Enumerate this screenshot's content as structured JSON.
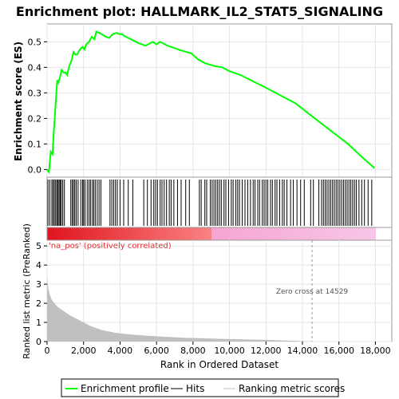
{
  "chart_data": {
    "type": "line",
    "title": "Enrichment plot: HALLMARK_IL2_STAT5_SIGNALING",
    "panels": {
      "enrichment": {
        "ylabel": "Enrichment score (ES)",
        "ylim": [
          -0.03,
          0.57
        ],
        "yticks": [
          "0.0",
          "0.1",
          "0.2",
          "0.3",
          "0.4",
          "0.5"
        ],
        "ytick_values": [
          0.0,
          0.1,
          0.2,
          0.3,
          0.4,
          0.5
        ],
        "grid": true,
        "series": [
          {
            "name": "Enrichment profile",
            "color": "#00ff00",
            "x": [
              0,
              100,
              200,
              300,
              350,
              420,
              500,
              560,
              620,
              700,
              800,
              900,
              1000,
              1100,
              1200,
              1350,
              1450,
              1550,
              1650,
              1800,
              1950,
              2050,
              2150,
              2300,
              2450,
              2600,
              2700,
              2850,
              3000,
              3200,
              3400,
              3600,
              3800,
              3950,
              4100,
              4300,
              4600,
              5000,
              5400,
              5800,
              6000,
              6200,
              6600,
              7000,
              7400,
              7900,
              8300,
              8700,
              9200,
              9600,
              10000,
              10600,
              11300,
              12000,
              12800,
              13600,
              14500,
              15500,
              16500,
              17400,
              17950
            ],
            "y": [
              0.0,
              -0.01,
              0.07,
              0.06,
              0.13,
              0.2,
              0.29,
              0.35,
              0.34,
              0.36,
              0.39,
              0.38,
              0.38,
              0.37,
              0.4,
              0.43,
              0.46,
              0.45,
              0.45,
              0.47,
              0.48,
              0.47,
              0.49,
              0.5,
              0.52,
              0.51,
              0.54,
              0.535,
              0.53,
              0.52,
              0.515,
              0.53,
              0.535,
              0.53,
              0.53,
              0.52,
              0.51,
              0.495,
              0.485,
              0.5,
              0.49,
              0.5,
              0.485,
              0.475,
              0.465,
              0.455,
              0.43,
              0.415,
              0.405,
              0.4,
              0.385,
              0.37,
              0.345,
              0.32,
              0.29,
              0.26,
              0.21,
              0.155,
              0.1,
              0.04,
              0.005
            ]
          }
        ]
      },
      "hits": {
        "name": "Hits",
        "color": "#000000",
        "positions": [
          50,
          150,
          260,
          330,
          400,
          470,
          540,
          600,
          660,
          720,
          780,
          860,
          950,
          1300,
          1380,
          1450,
          1520,
          1600,
          1700,
          1850,
          1950,
          2000,
          2080,
          2200,
          2300,
          2380,
          2480,
          2560,
          2640,
          2750,
          2850,
          2950,
          3450,
          3550,
          3650,
          3750,
          3850,
          4000,
          4200,
          4450,
          4700,
          5300,
          5500,
          5700,
          5850,
          5950,
          6050,
          6200,
          6300,
          6420,
          6550,
          6700,
          6800,
          6950,
          7150,
          7350,
          7600,
          7800,
          8350,
          8450,
          8650,
          8750,
          8950,
          9050,
          9150,
          9250,
          9350,
          9450,
          9550,
          9700,
          9800,
          9950,
          10100,
          10200,
          10350,
          10450,
          10550,
          10700,
          10850,
          11000,
          11150,
          11300,
          11400,
          11550,
          11650,
          11800,
          11900,
          12000,
          12100,
          12250,
          12350,
          12500,
          12600,
          12750,
          12900,
          13000,
          13150,
          13350,
          13500,
          13700,
          13900,
          14100,
          14450,
          14600,
          14900,
          15050,
          15150,
          15250,
          15350,
          15450,
          15550,
          15650,
          15750,
          15850,
          15950,
          16050,
          16150,
          16250,
          16350,
          16450,
          16550,
          16650,
          16750,
          16850,
          16950,
          17100,
          17250,
          17400,
          17600,
          17800
        ]
      },
      "ranked_metric": {
        "name": "Ranking metric scores",
        "color": "#c0c0c0",
        "xlabel": "Rank in Ordered Dataset",
        "ylabel": "Ranked list metric (PreRanked)",
        "ylim": [
          0,
          5.3
        ],
        "yticks": [
          "0",
          "1",
          "2",
          "3",
          "4",
          "5"
        ],
        "ytick_values": [
          0,
          1,
          2,
          3,
          4,
          5
        ],
        "x": [
          0,
          30,
          80,
          150,
          250,
          400,
          600,
          900,
          1300,
          1800,
          2400,
          3000,
          3800,
          4600,
          5500,
          6500,
          7500,
          8500,
          9500,
          10500,
          11500,
          12500,
          13500,
          14529,
          15000,
          18000
        ],
        "y": [
          3.5,
          3.1,
          2.7,
          2.45,
          2.2,
          2.0,
          1.8,
          1.6,
          1.35,
          1.1,
          0.8,
          0.6,
          0.45,
          0.37,
          0.3,
          0.25,
          0.2,
          0.17,
          0.14,
          0.12,
          0.1,
          0.07,
          0.04,
          0.0,
          0.0,
          0.0
        ],
        "label_positive": "'na_pos' (positively correlated)",
        "label_positive_color": "#e03030",
        "zero_cross_label": "Zero cross at 14529",
        "zero_cross": 14529
      }
    },
    "xticks": [
      "0",
      "2,000",
      "4,000",
      "6,000",
      "8,000",
      "10,000",
      "12,000",
      "14,000",
      "16,000",
      "18,000"
    ],
    "xtick_values": [
      0,
      2000,
      4000,
      6000,
      8000,
      10000,
      12000,
      14000,
      16000,
      18000
    ],
    "xlim": [
      0,
      18900
    ],
    "n_genes": 18000,
    "legend": {
      "placement": "bottom",
      "entries": [
        "Enrichment profile",
        "Hits",
        "Ranking metric scores"
      ]
    }
  }
}
